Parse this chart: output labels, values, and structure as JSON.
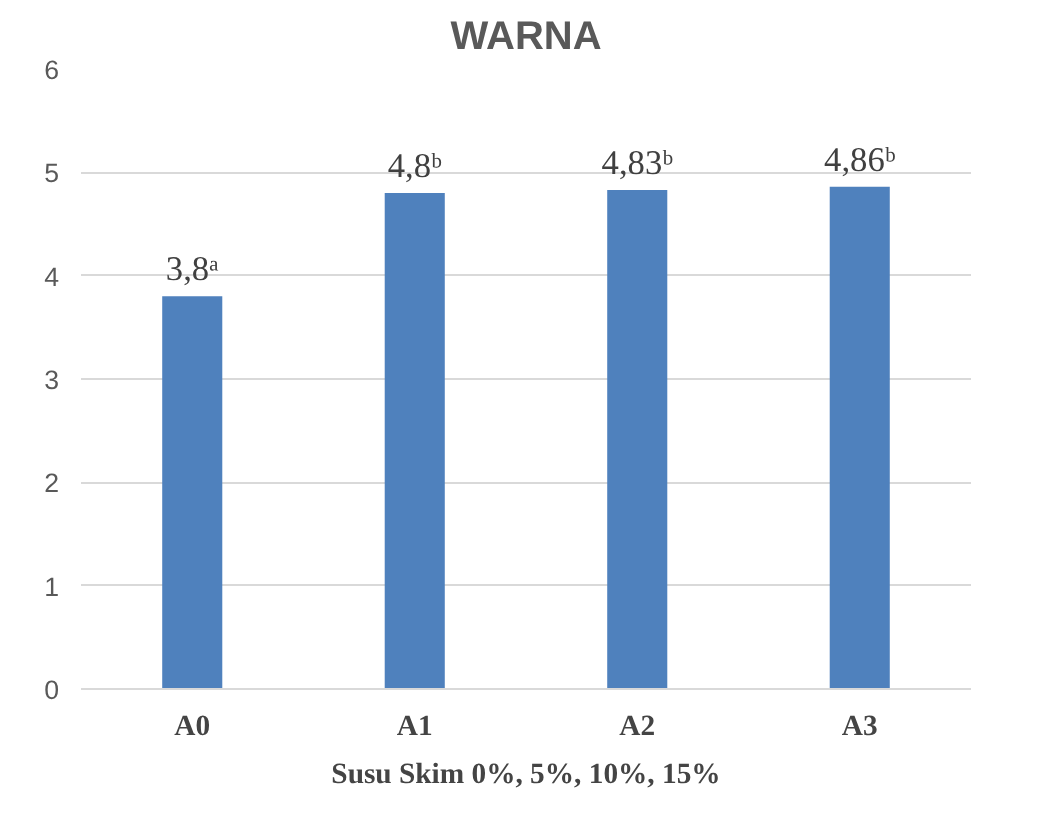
{
  "chart_data": {
    "type": "bar",
    "title": "WARNA",
    "xlabel": "Susu Skim 0%, 5%, 10%, 15%",
    "categories": [
      "A0",
      "A1",
      "A2",
      "A3"
    ],
    "values": [
      3.8,
      4.8,
      4.83,
      4.86
    ],
    "value_labels": [
      "3,8ᵃ",
      "4,8ᵇ",
      "4,83ᵇ",
      "4,86ᵇ"
    ],
    "color": "#4f81bd",
    "ylim": [
      0,
      6
    ],
    "yticks": [
      0,
      1,
      2,
      3,
      4,
      5,
      6
    ],
    "grid": "y"
  }
}
